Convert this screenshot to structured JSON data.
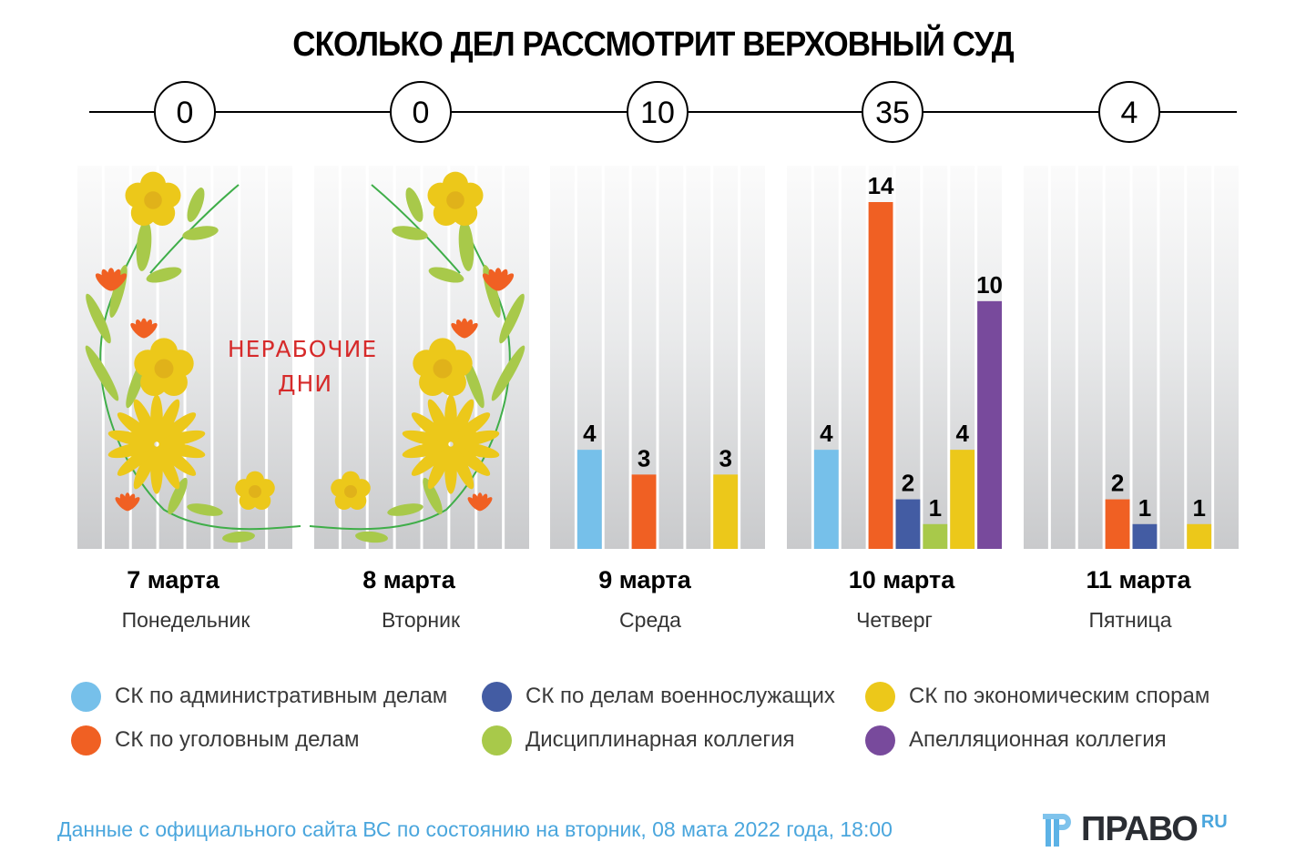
{
  "title": "СКОЛЬКО ДЕЛ РАССМОТРИТ ВЕРХОВНЫЙ СУД",
  "holiday_label": [
    "НЕРАБОЧИЕ",
    "ДНИ"
  ],
  "chart_data": {
    "type": "bar",
    "title": "СКОЛЬКО ДЕЛ РАССМОТРИТ ВЕРХОВНЫЙ СУД",
    "xlabel": "",
    "ylabel": "",
    "ylim": [
      0,
      14
    ],
    "grid": false,
    "legend_position": "bottom",
    "categories": [
      "7 марта",
      "8 марта",
      "9 марта",
      "10 марта",
      "11 марта"
    ],
    "weekdays": [
      "Понедельник",
      "Вторник",
      "Среда",
      "Четверг",
      "Пятница"
    ],
    "totals": [
      0,
      0,
      10,
      35,
      4
    ],
    "non_working": [
      true,
      true,
      false,
      false,
      false
    ],
    "series": [
      {
        "name": "СК по административным делам",
        "color": "#76c0ea",
        "values": [
          null,
          null,
          4,
          4,
          null
        ]
      },
      {
        "name": "СК по уголовным делам",
        "color": "#f06023",
        "values": [
          null,
          null,
          3,
          14,
          2
        ]
      },
      {
        "name": "СК по делам военнослужащих",
        "color": "#435ca3",
        "values": [
          null,
          null,
          null,
          2,
          1
        ]
      },
      {
        "name": "Дисциплинарная коллегия",
        "color": "#a8c94a",
        "values": [
          null,
          null,
          null,
          1,
          null
        ]
      },
      {
        "name": "СК по экономическим спорам",
        "color": "#ecc81a",
        "values": [
          null,
          null,
          3,
          4,
          1
        ]
      },
      {
        "name": "Апелляционная коллегия",
        "color": "#784a9c",
        "values": [
          null,
          null,
          null,
          10,
          null
        ]
      }
    ]
  },
  "legend": [
    {
      "label": "СК по административным делам",
      "color": "#76c0ea"
    },
    {
      "label": "СК по делам военнослужащих",
      "color": "#435ca3"
    },
    {
      "label": "СК по экономическим спорам",
      "color": "#ecc81a"
    },
    {
      "label": "СК по уголовным делам",
      "color": "#f06023"
    },
    {
      "label": "Дисциплинарная коллегия",
      "color": "#a8c94a"
    },
    {
      "label": "Апелляционная коллегия",
      "color": "#784a9c"
    }
  ],
  "footer": "Данные с официального сайта ВС по состоянию на вторник, 08 мата 2022 года, 18:00",
  "logo": {
    "text": "ПРАВО",
    "sup": "RU"
  }
}
